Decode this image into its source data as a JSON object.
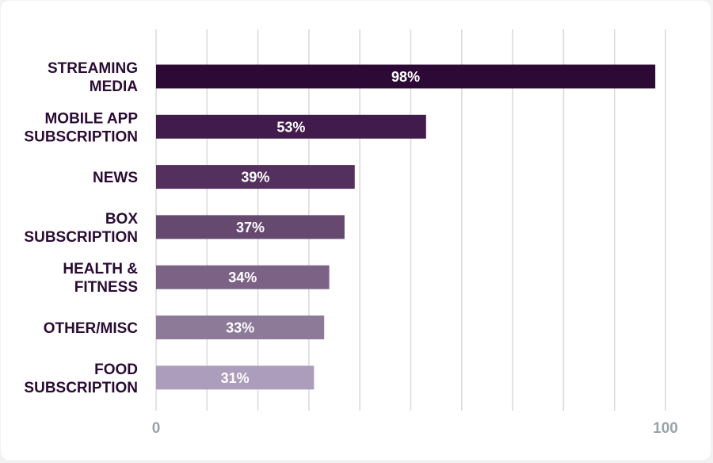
{
  "chart_data": {
    "type": "bar",
    "orientation": "horizontal",
    "categories": [
      [
        "STREAMING",
        "MEDIA"
      ],
      [
        "MOBILE APP",
        "SUBSCRIPTION"
      ],
      [
        "NEWS"
      ],
      [
        "BOX",
        "SUBSCRIPTION"
      ],
      [
        "HEALTH &",
        "FITNESS"
      ],
      [
        "OTHER/MISC"
      ],
      [
        "FOOD",
        "SUBSCRIPTION"
      ]
    ],
    "values": [
      98,
      53,
      39,
      37,
      34,
      33,
      31
    ],
    "value_labels": [
      "98%",
      "53%",
      "39%",
      "37%",
      "34%",
      "33%",
      "31%"
    ],
    "bar_colors": [
      "#2d0a36",
      "#421b4d",
      "#54305f",
      "#66496f",
      "#7c6386",
      "#8d7a99",
      "#ab9dbb"
    ],
    "xlim": [
      0,
      100
    ],
    "x_tick_labels": [
      "0",
      "100"
    ],
    "grid": true,
    "grid_color": "#d9d9d9",
    "label_color": "#2a0b33",
    "tick_color": "#9aa3a6"
  }
}
